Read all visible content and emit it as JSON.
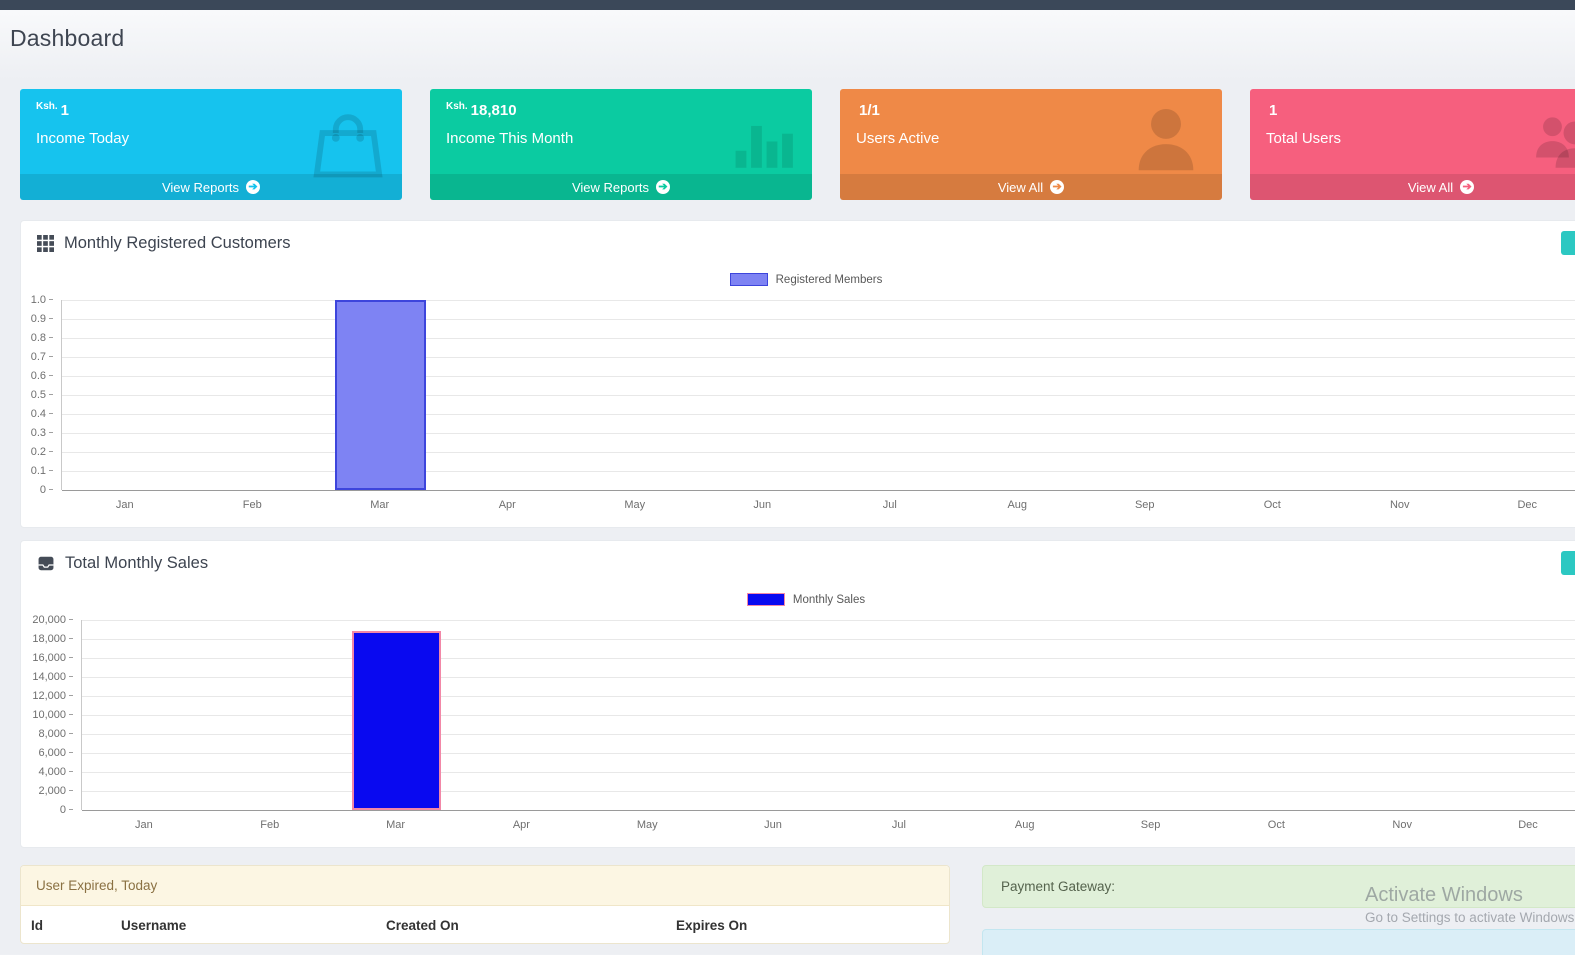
{
  "page_title": "Dashboard",
  "cards": [
    {
      "prefix": "Ksh.",
      "value": "1",
      "label": "Income Today",
      "action": "View Reports",
      "color": "#16c3ee"
    },
    {
      "prefix": "Ksh.",
      "value": "18,810",
      "label": "Income This Month",
      "action": "View Reports",
      "color": "#0bcba1"
    },
    {
      "prefix": "",
      "value": "1/1",
      "label": "Users Active",
      "action": "View All",
      "color": "#ef8947"
    },
    {
      "prefix": "",
      "value": "1",
      "label": "Total Users",
      "action": "View All",
      "color": "#f65f7e"
    }
  ],
  "chart_data": [
    {
      "type": "bar",
      "title": "Monthly Registered Customers",
      "legend": "Registered Members",
      "categories": [
        "Jan",
        "Feb",
        "Mar",
        "Apr",
        "May",
        "Jun",
        "Jul",
        "Aug",
        "Sep",
        "Oct",
        "Nov",
        "Dec"
      ],
      "values": [
        0,
        0,
        1,
        0,
        0,
        0,
        0,
        0,
        0,
        0,
        0,
        0
      ],
      "ylim": [
        0,
        1
      ],
      "ytick_labels": [
        "1.0",
        "0.9",
        "0.8",
        "0.7",
        "0.6",
        "0.5",
        "0.4",
        "0.3",
        "0.2",
        "0.1",
        "0"
      ],
      "grid": true,
      "legend_position": "top-center",
      "bar_fill": "#7e83f3",
      "bar_border": "#3d45dc"
    },
    {
      "type": "bar",
      "title": "Total Monthly Sales",
      "legend": "Monthly Sales",
      "categories": [
        "Jan",
        "Feb",
        "Mar",
        "Apr",
        "May",
        "Jun",
        "Jul",
        "Aug",
        "Sep",
        "Oct",
        "Nov",
        "Dec"
      ],
      "values": [
        0,
        0,
        18810,
        0,
        0,
        0,
        0,
        0,
        0,
        0,
        0,
        0
      ],
      "ylim": [
        0,
        20000
      ],
      "ytick_labels": [
        "20,000",
        "18,000",
        "16,000",
        "14,000",
        "12,000",
        "10,000",
        "8,000",
        "6,000",
        "4,000",
        "2,000",
        "0"
      ],
      "grid": true,
      "legend_position": "top-center",
      "bar_fill": "#0909f0",
      "bar_border": "#f287a7"
    }
  ],
  "expired_table": {
    "header": "User Expired, Today",
    "columns": [
      "Id",
      "Username",
      "Created On",
      "Expires On"
    ],
    "rows": []
  },
  "payment_gateway": {
    "label": "Payment Gateway:"
  },
  "watermark": {
    "line1": "Activate Windows",
    "line2": "Go to Settings to activate Windows"
  }
}
